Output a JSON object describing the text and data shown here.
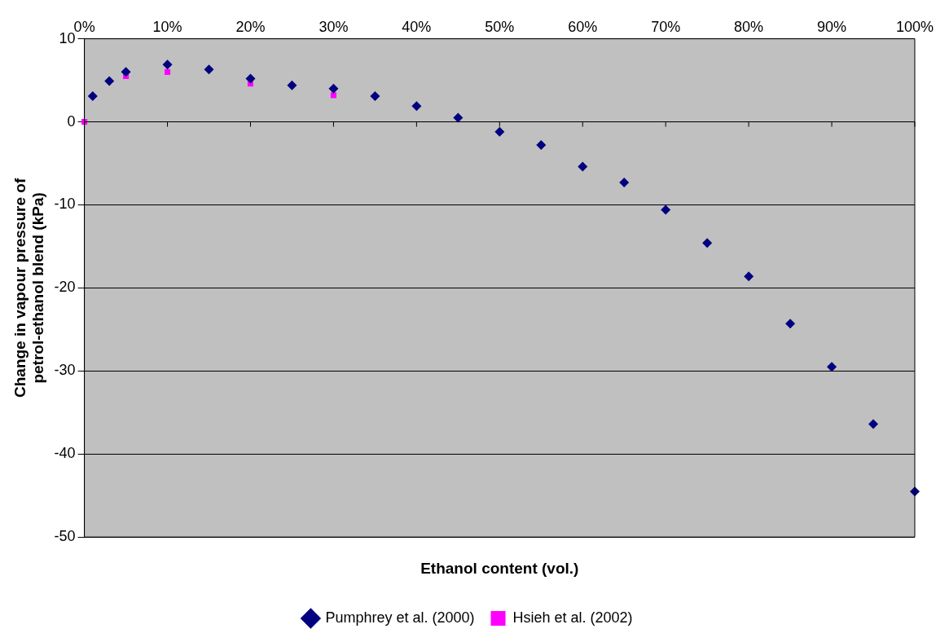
{
  "chart_data": {
    "type": "scatter",
    "xlabel": "Ethanol content (vol.)",
    "ylabel": "Change in vapour pressure of petrol-ethanol blend (kPa)",
    "xlim": [
      0,
      100
    ],
    "xticks": [
      {
        "value": 0,
        "label": "0%"
      },
      {
        "value": 10,
        "label": "10%"
      },
      {
        "value": 20,
        "label": "20%"
      },
      {
        "value": 30,
        "label": "30%"
      },
      {
        "value": 40,
        "label": "40%"
      },
      {
        "value": 50,
        "label": "50%"
      },
      {
        "value": 60,
        "label": "60%"
      },
      {
        "value": 70,
        "label": "70%"
      },
      {
        "value": 80,
        "label": "80%"
      },
      {
        "value": 90,
        "label": "90%"
      },
      {
        "value": 100,
        "label": "100%"
      }
    ],
    "ylim": [
      -50,
      10
    ],
    "yticks": [
      -50,
      -40,
      -30,
      -20,
      -10,
      0,
      10
    ],
    "grid": "y",
    "legend": "bottom",
    "series": [
      {
        "name": "Pumphrey et al. (2000)",
        "color": "#000080",
        "marker": "diamond",
        "x": [
          1,
          3,
          5,
          10,
          15,
          20,
          25,
          30,
          35,
          40,
          45,
          50,
          55,
          60,
          65,
          70,
          75,
          80,
          85,
          90,
          95,
          100
        ],
        "values": [
          3.1,
          4.9,
          6.0,
          6.9,
          6.3,
          5.2,
          4.4,
          4.0,
          3.1,
          1.9,
          0.5,
          -1.2,
          -2.8,
          -5.4,
          -7.3,
          -10.6,
          -14.6,
          -18.6,
          -24.3,
          -29.5,
          -36.4,
          -44.5
        ]
      },
      {
        "name": "Hsieh et al. (2002)",
        "color": "#ff00ff",
        "marker": "square",
        "x": [
          0,
          5,
          10,
          20,
          30
        ],
        "values": [
          0,
          5.5,
          6.0,
          4.6,
          3.2
        ]
      }
    ]
  }
}
